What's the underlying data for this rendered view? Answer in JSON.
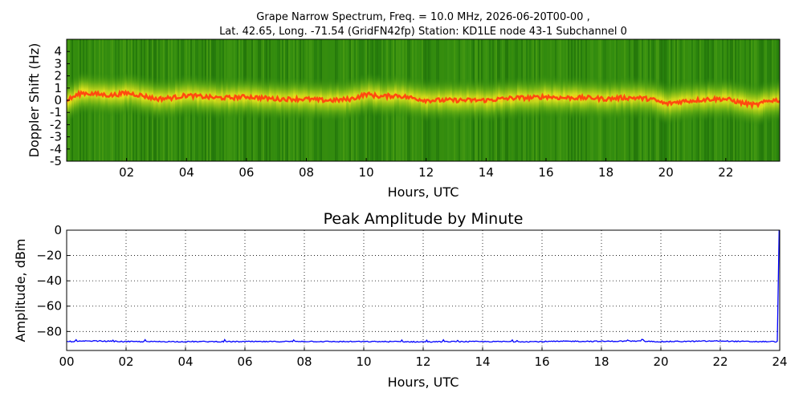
{
  "header": {
    "line1": "Grape Narrow Spectrum, Freq. = 10.0 MHz, 2026-06-20T00-00 ,",
    "line2": "Lat.  42.65, Long. -71.54 (GridFN42fp) Station: KD1LE node 43-1 Subchannel 0"
  },
  "colors": {
    "spectrum_background": "#2f8a10",
    "spectrum_mid": "#c8d81c",
    "spectrum_peak": "#ff4a10",
    "amplitude_line": "#0000ff",
    "grid": "#000000"
  },
  "chart_data": [
    {
      "type": "heatmap",
      "title": "",
      "xlabel": "Hours, UTC",
      "ylabel": "Doppler Shift (Hz)",
      "xlim": [
        0,
        23.8
      ],
      "ylim": [
        -5,
        5
      ],
      "xticks": [
        "02",
        "04",
        "06",
        "08",
        "10",
        "12",
        "14",
        "16",
        "18",
        "20",
        "22"
      ],
      "xtick_values": [
        2,
        4,
        6,
        8,
        10,
        12,
        14,
        16,
        18,
        20,
        22
      ],
      "yticks": [
        "4",
        "3",
        "2",
        "1",
        "0",
        "-1",
        "-2",
        "-3",
        "-4",
        "-5"
      ],
      "ytick_values": [
        4,
        3,
        2,
        1,
        0,
        -1,
        -2,
        -3,
        -4,
        -5
      ],
      "grid": false,
      "peak_doppler_hz": {
        "x": [
          0,
          0.5,
          1,
          1.5,
          2,
          2.5,
          3,
          3.5,
          4,
          4.5,
          5,
          5.5,
          6,
          6.5,
          7,
          7.5,
          8,
          8.5,
          9,
          9.5,
          10,
          10.5,
          11,
          11.5,
          12,
          12.5,
          13,
          13.5,
          14,
          14.5,
          15,
          15.5,
          16,
          16.5,
          17,
          17.5,
          18,
          18.5,
          19,
          19.5,
          20,
          20.5,
          21,
          21.5,
          22,
          22.5,
          23,
          23.5,
          23.8
        ],
        "y": [
          0,
          0.6,
          0.5,
          0.4,
          0.6,
          0.4,
          0.1,
          0.2,
          0.4,
          0.3,
          0.2,
          0.2,
          0.3,
          0.2,
          0.1,
          0.1,
          0.1,
          0.0,
          0.0,
          0.1,
          0.5,
          0.3,
          0.4,
          0.2,
          0.0,
          0.0,
          0.0,
          0.0,
          0.0,
          0.1,
          0.2,
          0.2,
          0.3,
          0.2,
          0.2,
          0.2,
          0.1,
          0.2,
          0.2,
          0.1,
          -0.3,
          -0.1,
          0.0,
          0.1,
          0.1,
          -0.2,
          -0.4,
          0.0,
          0.0
        ]
      }
    },
    {
      "type": "line",
      "title": "Peak Amplitude by Minute",
      "xlabel": "Hours, UTC",
      "ylabel": "Amplitude, dBm",
      "xlim": [
        0,
        24
      ],
      "ylim": [
        -95,
        0
      ],
      "xticks": [
        "00",
        "02",
        "04",
        "06",
        "08",
        "10",
        "12",
        "14",
        "16",
        "18",
        "20",
        "22",
        "24"
      ],
      "xtick_values": [
        0,
        2,
        4,
        6,
        8,
        10,
        12,
        14,
        16,
        18,
        20,
        22,
        24
      ],
      "yticks": [
        "0",
        "−20",
        "−40",
        "−60",
        "−80"
      ],
      "ytick_values": [
        0,
        -20,
        -40,
        -60,
        -80
      ],
      "grid": true,
      "series": [
        {
          "x": [
            0,
            1,
            2,
            3,
            4,
            5,
            6,
            7,
            8,
            9,
            10,
            11,
            12,
            13,
            14,
            15,
            16,
            17,
            18,
            19,
            20,
            21,
            22,
            23,
            23.95,
            23.98
          ],
          "y": [
            -88,
            -87.5,
            -88,
            -88,
            -88,
            -88,
            -88,
            -88,
            -87.8,
            -88,
            -88,
            -88,
            -88.2,
            -88,
            -88,
            -88,
            -88,
            -87.7,
            -87.8,
            -87.6,
            -88,
            -87.8,
            -87.5,
            -88,
            -88,
            0
          ]
        }
      ]
    }
  ]
}
